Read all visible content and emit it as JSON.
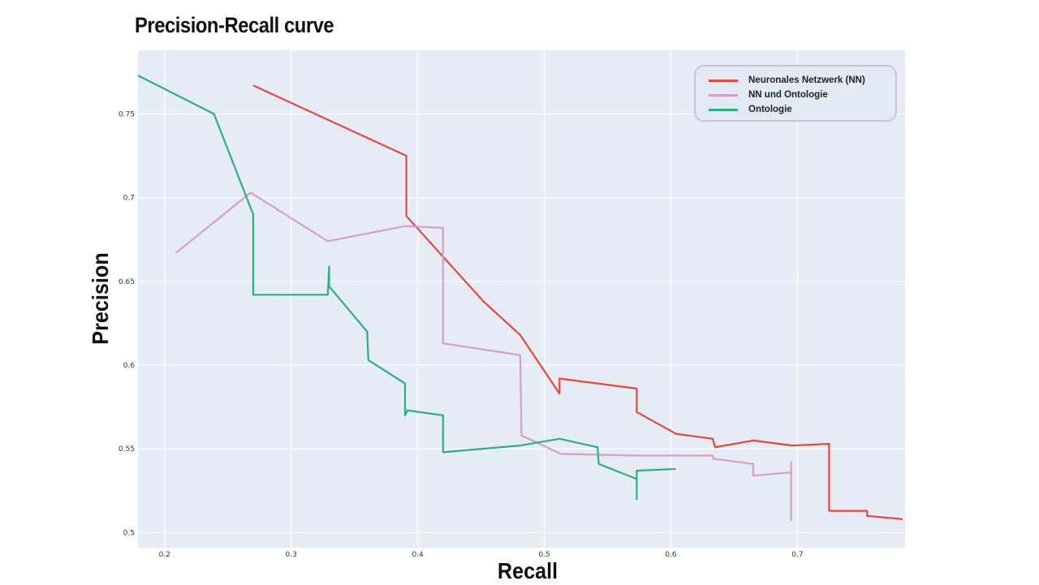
{
  "chart_data": {
    "type": "line",
    "title": "Precision-Recall curve",
    "xlabel": "Recall",
    "ylabel": "Precision",
    "xlim": [
      0.179,
      0.785
    ],
    "ylim": [
      0.491,
      0.788
    ],
    "xticks": [
      0.2,
      0.3,
      0.4,
      0.5,
      0.6,
      0.7
    ],
    "xtick_labels": [
      "0.2",
      "0.3",
      "0.4",
      "0.5",
      "0.6",
      "0.7"
    ],
    "yticks": [
      0.5,
      0.55,
      0.6,
      0.65,
      0.7,
      0.75
    ],
    "ytick_labels": [
      "0.5",
      "0.55",
      "0.6",
      "0.65",
      "0.7",
      "0.75"
    ],
    "grid": true,
    "legend_position": "top-right",
    "series": [
      {
        "name": "Neuronales Netzwerk (NN)",
        "color": "#e8473c",
        "x": [
          0.27,
          0.391,
          0.391,
          0.452,
          0.481,
          0.512,
          0.512,
          0.573,
          0.573,
          0.604,
          0.633,
          0.635,
          0.665,
          0.696,
          0.725,
          0.725,
          0.755,
          0.755,
          0.783
        ],
        "y": [
          0.767,
          0.725,
          0.689,
          0.638,
          0.618,
          0.583,
          0.592,
          0.586,
          0.572,
          0.559,
          0.556,
          0.551,
          0.555,
          0.552,
          0.553,
          0.513,
          0.513,
          0.51,
          0.508
        ]
      },
      {
        "name": "NN und Ontologie",
        "color": "#dc9cc8",
        "x": [
          0.209,
          0.268,
          0.329,
          0.39,
          0.42,
          0.42,
          0.481,
          0.482,
          0.513,
          0.573,
          0.633,
          0.634,
          0.665,
          0.665,
          0.695,
          0.695,
          0.695
        ],
        "y": [
          0.667,
          0.703,
          0.674,
          0.683,
          0.682,
          0.613,
          0.606,
          0.558,
          0.547,
          0.546,
          0.546,
          0.544,
          0.541,
          0.534,
          0.536,
          0.542,
          0.507
        ]
      },
      {
        "name": "Ontologie",
        "color": "#2bb07f",
        "x": [
          0.179,
          0.239,
          0.27,
          0.27,
          0.329,
          0.33,
          0.33,
          0.36,
          0.361,
          0.39,
          0.39,
          0.392,
          0.42,
          0.42,
          0.481,
          0.512,
          0.542,
          0.543,
          0.573,
          0.573,
          0.573,
          0.604
        ],
        "y": [
          0.773,
          0.75,
          0.69,
          0.642,
          0.642,
          0.659,
          0.647,
          0.62,
          0.603,
          0.589,
          0.57,
          0.573,
          0.57,
          0.548,
          0.552,
          0.556,
          0.551,
          0.541,
          0.532,
          0.52,
          0.537,
          0.538
        ]
      }
    ]
  }
}
